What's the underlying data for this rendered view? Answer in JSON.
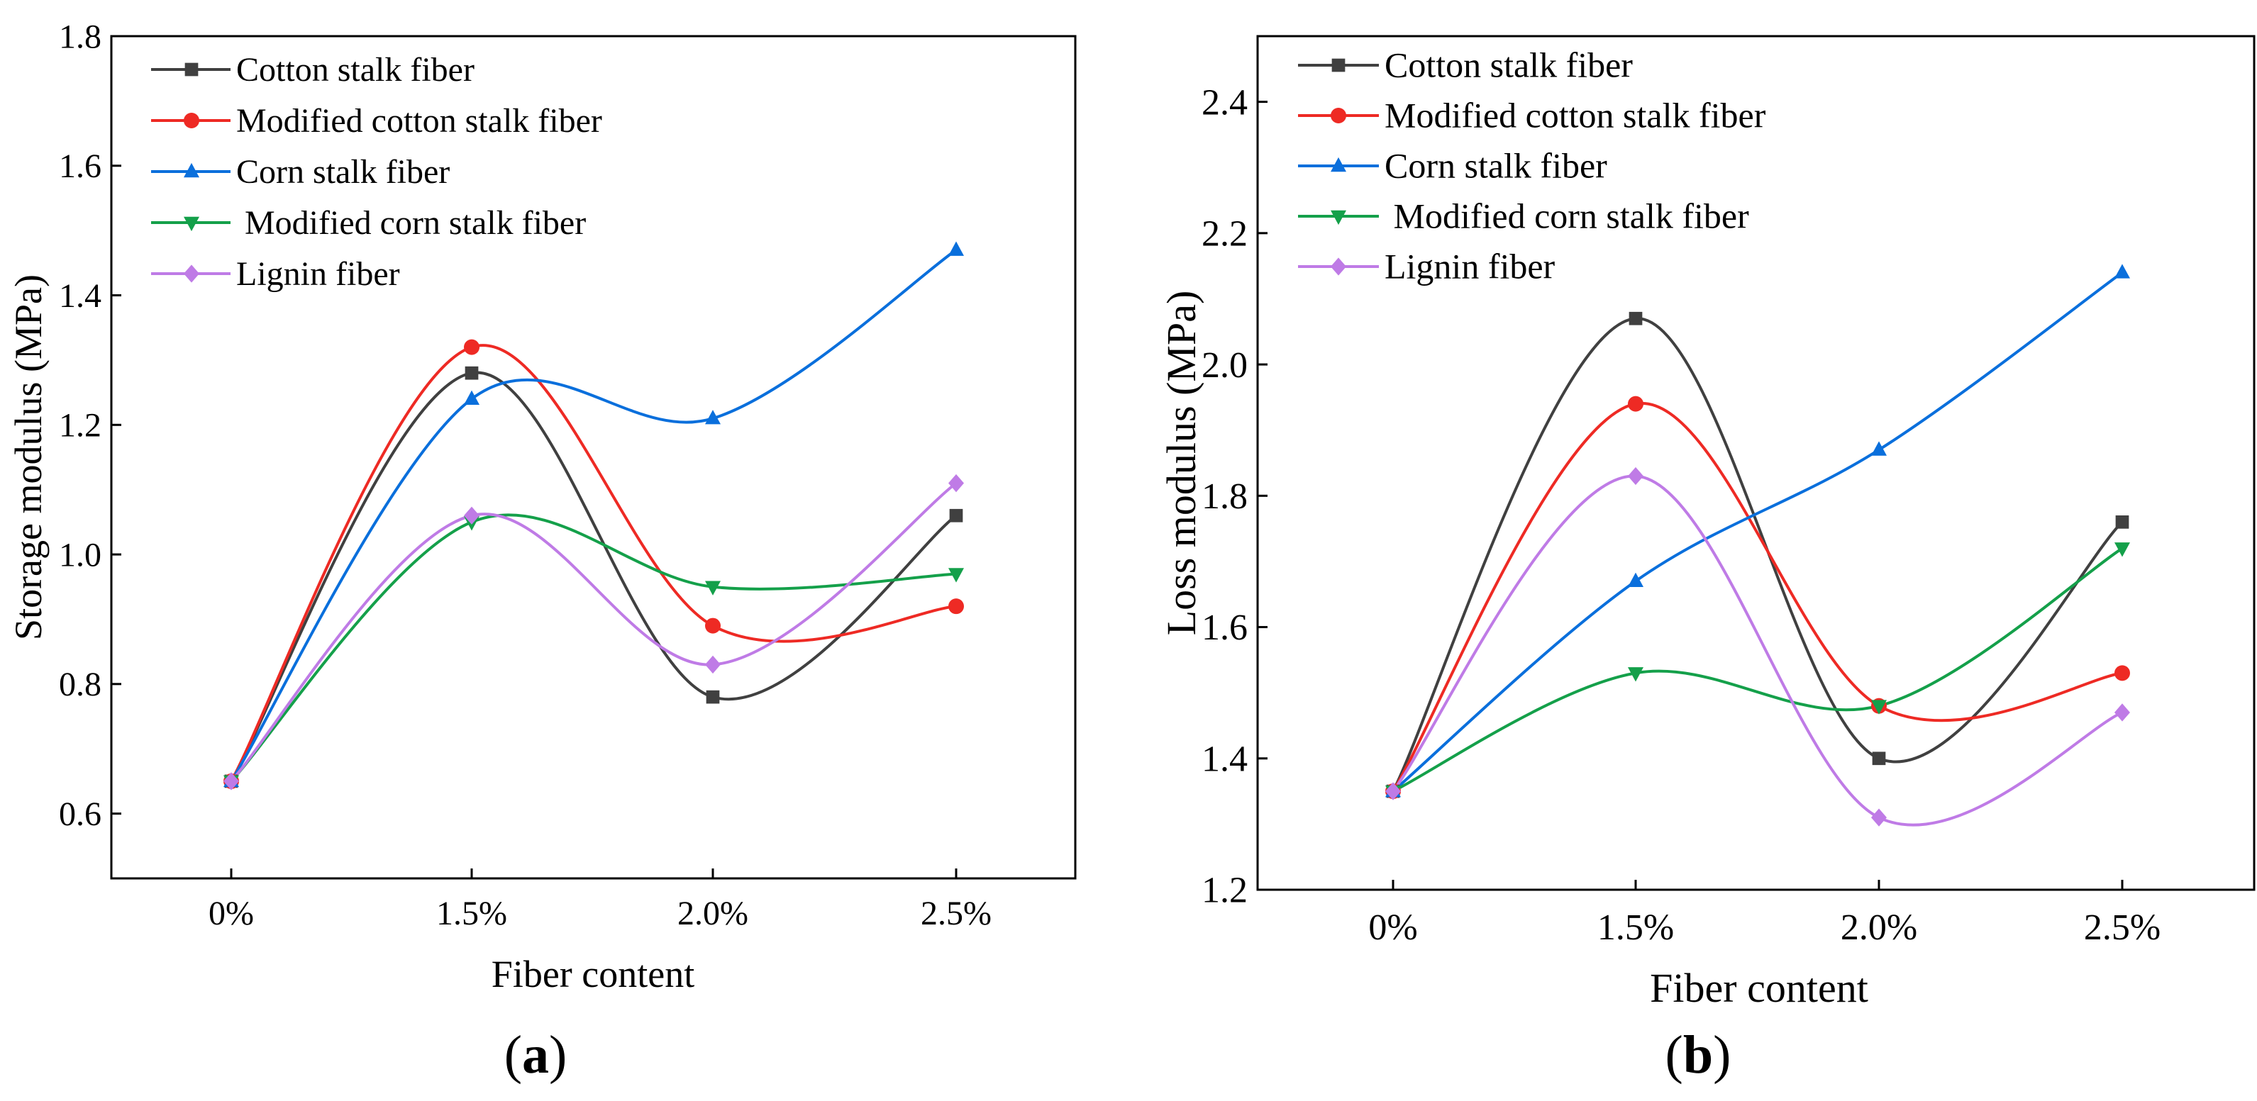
{
  "colors": {
    "cotton": "#404040",
    "modified_cotton": "#ee2a24",
    "corn": "#0a6fdc",
    "modified_corn": "#14a04a",
    "lignin": "#bf7be6"
  },
  "chart_data": [
    {
      "type": "line",
      "panel": "(a)",
      "panel_open": "(",
      "panel_letter": "a",
      "panel_close": ")",
      "xlabel": "Fiber content",
      "ylabel": "Storage modulus (MPa)",
      "categories": [
        "0%",
        "1.5%",
        "2.0%",
        "2.5%"
      ],
      "ylim": [
        0.5,
        1.8
      ],
      "yticks": [
        "0.6",
        "0.8",
        "1.0",
        "1.2",
        "1.4",
        "1.6",
        "1.8"
      ],
      "legend_position": "top-left",
      "series": [
        {
          "name": "Cotton stalk fiber",
          "color_key": "cotton",
          "marker": "square",
          "values": [
            0.65,
            1.28,
            0.78,
            1.06
          ]
        },
        {
          "name": "Modified cotton stalk fiber",
          "color_key": "modified_cotton",
          "marker": "circle",
          "values": [
            0.65,
            1.32,
            0.89,
            0.92
          ]
        },
        {
          "name": "Corn stalk fiber",
          "color_key": "corn",
          "marker": "triangle-up",
          "values": [
            0.65,
            1.24,
            1.21,
            1.47
          ]
        },
        {
          "name": " Modified corn stalk fiber",
          "color_key": "modified_corn",
          "marker": "triangle-down",
          "values": [
            0.65,
            1.05,
            0.95,
            0.97
          ]
        },
        {
          "name": "Lignin fiber",
          "color_key": "lignin",
          "marker": "diamond",
          "values": [
            0.65,
            1.06,
            0.83,
            1.11
          ]
        }
      ]
    },
    {
      "type": "line",
      "panel": "(b)",
      "panel_open": "(",
      "panel_letter": "b",
      "panel_close": ")",
      "xlabel": "Fiber content",
      "ylabel": "Loss modulus (MPa)",
      "categories": [
        "0%",
        "1.5%",
        "2.0%",
        "2.5%"
      ],
      "ylim": [
        1.2,
        2.5
      ],
      "yticks": [
        "1.2",
        "1.4",
        "1.6",
        "1.8",
        "2.0",
        "2.2",
        "2.4"
      ],
      "legend_position": "top-left",
      "series": [
        {
          "name": "Cotton stalk fiber",
          "color_key": "cotton",
          "marker": "square",
          "values": [
            1.35,
            2.07,
            1.4,
            1.76
          ]
        },
        {
          "name": "Modified cotton stalk fiber",
          "color_key": "modified_cotton",
          "marker": "circle",
          "values": [
            1.35,
            1.94,
            1.48,
            1.53
          ]
        },
        {
          "name": "Corn stalk fiber",
          "color_key": "corn",
          "marker": "triangle-up",
          "values": [
            1.35,
            1.67,
            1.87,
            2.14
          ]
        },
        {
          "name": " Modified corn stalk fiber",
          "color_key": "modified_corn",
          "marker": "triangle-down",
          "values": [
            1.35,
            1.53,
            1.48,
            1.72
          ]
        },
        {
          "name": "Lignin fiber",
          "color_key": "lignin",
          "marker": "diamond",
          "values": [
            1.35,
            1.83,
            1.31,
            1.47
          ]
        }
      ]
    }
  ]
}
